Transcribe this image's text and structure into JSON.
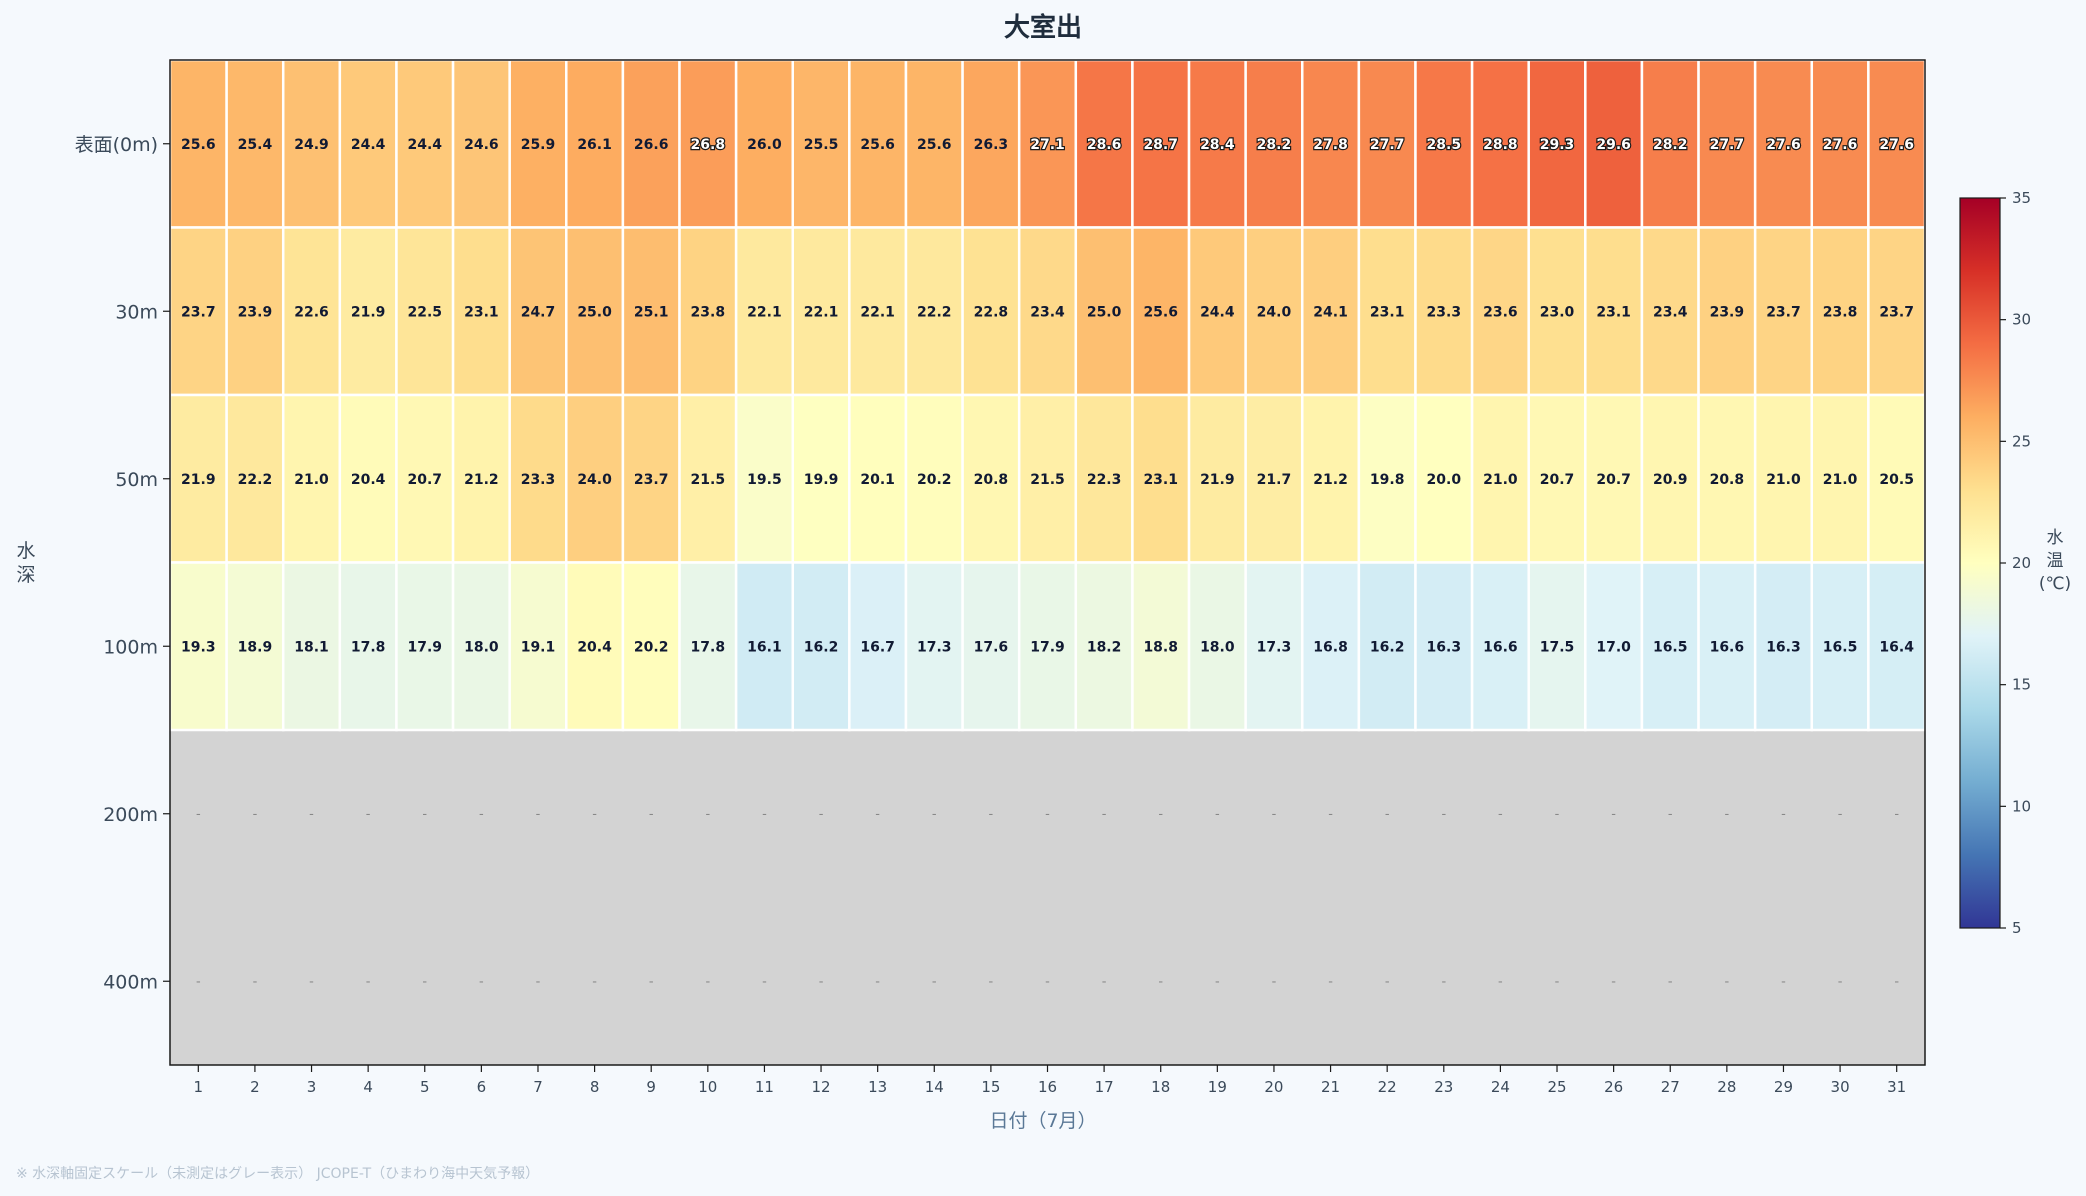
{
  "chart_data": {
    "type": "heatmap",
    "title": "大室出",
    "xlabel": "日付（7月）",
    "ylabel": "水深",
    "x": [
      1,
      2,
      3,
      4,
      5,
      6,
      7,
      8,
      9,
      10,
      11,
      12,
      13,
      14,
      15,
      16,
      17,
      18,
      19,
      20,
      21,
      22,
      23,
      24,
      25,
      26,
      27,
      28,
      29,
      30,
      31
    ],
    "y": [
      "表面(0m)",
      "30m",
      "50m",
      "100m",
      "200m",
      "400m"
    ],
    "missing_label": "-",
    "missing_color": "#d3d3d3",
    "values": [
      [
        25.6,
        25.4,
        24.9,
        24.4,
        24.4,
        24.6,
        25.9,
        26.1,
        26.6,
        26.8,
        26.0,
        25.5,
        25.6,
        25.6,
        26.3,
        27.1,
        28.6,
        28.7,
        28.4,
        28.2,
        27.8,
        27.7,
        28.5,
        28.8,
        29.3,
        29.6,
        28.2,
        27.7,
        27.6,
        27.6,
        27.6
      ],
      [
        23.7,
        23.9,
        22.6,
        21.9,
        22.5,
        23.1,
        24.7,
        25.0,
        25.1,
        23.8,
        22.1,
        22.1,
        22.1,
        22.2,
        22.8,
        23.4,
        25.0,
        25.6,
        24.4,
        24.0,
        24.1,
        23.1,
        23.3,
        23.6,
        23.0,
        23.1,
        23.4,
        23.9,
        23.7,
        23.8,
        23.7
      ],
      [
        21.9,
        22.2,
        21.0,
        20.4,
        20.7,
        21.2,
        23.3,
        24.0,
        23.7,
        21.5,
        19.5,
        19.9,
        20.1,
        20.2,
        20.8,
        21.5,
        22.3,
        23.1,
        21.9,
        21.7,
        21.2,
        19.8,
        20.0,
        21.0,
        20.7,
        20.7,
        20.9,
        20.8,
        21.0,
        21.0,
        20.5
      ],
      [
        19.3,
        18.9,
        18.1,
        17.8,
        17.9,
        18.0,
        19.1,
        20.4,
        20.2,
        17.8,
        16.1,
        16.2,
        16.7,
        17.3,
        17.6,
        17.9,
        18.2,
        18.8,
        18.0,
        17.3,
        16.8,
        16.2,
        16.3,
        16.6,
        17.5,
        17.0,
        16.5,
        16.6,
        16.3,
        16.5,
        16.4
      ],
      [
        null,
        null,
        null,
        null,
        null,
        null,
        null,
        null,
        null,
        null,
        null,
        null,
        null,
        null,
        null,
        null,
        null,
        null,
        null,
        null,
        null,
        null,
        null,
        null,
        null,
        null,
        null,
        null,
        null,
        null,
        null
      ],
      [
        null,
        null,
        null,
        null,
        null,
        null,
        null,
        null,
        null,
        null,
        null,
        null,
        null,
        null,
        null,
        null,
        null,
        null,
        null,
        null,
        null,
        null,
        null,
        null,
        null,
        null,
        null,
        null,
        null,
        null,
        null
      ]
    ],
    "colorbar": {
      "label": "水温(℃)",
      "min": 5,
      "max": 35,
      "ticks": [
        5,
        10,
        15,
        20,
        25,
        30,
        35
      ],
      "colormap": "RdYlBu_r"
    },
    "grid": false
  },
  "footnote": "※ 水深軸固定スケール（未測定はグレー表示） JCOPE-T（ひまわり海中天気予報）"
}
